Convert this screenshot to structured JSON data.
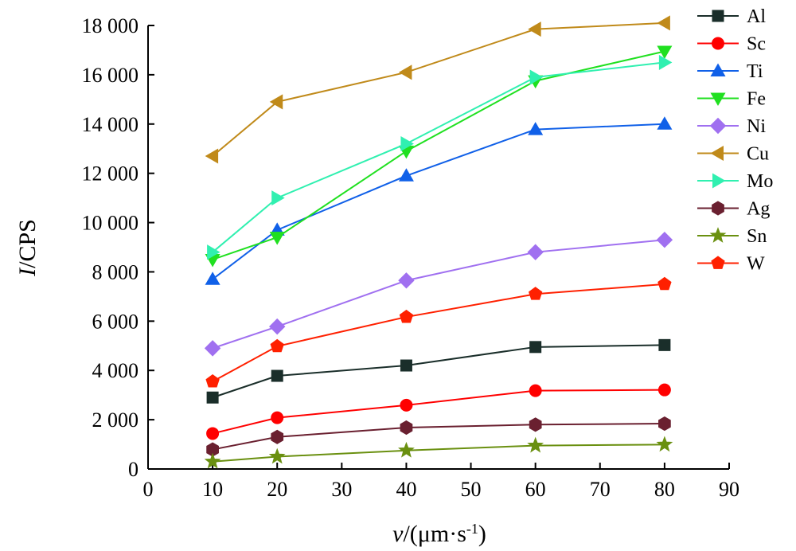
{
  "chart_data": {
    "type": "line",
    "xlabel": "v/(μm·s-1)",
    "ylabel": "I/CPS",
    "xlim": [
      0,
      90
    ],
    "ylim": [
      0,
      18000
    ],
    "x_ticks": [
      0,
      10,
      20,
      30,
      40,
      50,
      60,
      70,
      80,
      90
    ],
    "x_tick_labels": [
      "0",
      "10",
      "20",
      "30",
      "40",
      "50",
      "60",
      "70",
      "80",
      "90"
    ],
    "y_ticks": [
      0,
      2000,
      4000,
      6000,
      8000,
      10000,
      12000,
      14000,
      16000,
      18000
    ],
    "y_tick_labels": [
      "0",
      "2 000",
      "4 000",
      "6 000",
      "8 000",
      "10 000",
      "12 000",
      "14 000",
      "16 000",
      "18 000"
    ],
    "x": [
      10,
      20,
      40,
      60,
      80
    ],
    "grid": false,
    "legend_position": "right",
    "series": [
      {
        "name": "Al",
        "color": "#1a2e2a",
        "marker": "square",
        "values": [
          2900,
          3780,
          4200,
          4950,
          5030
        ]
      },
      {
        "name": "Sc",
        "color": "#ff0000",
        "marker": "circle",
        "values": [
          1440,
          2080,
          2590,
          3180,
          3210
        ]
      },
      {
        "name": "Ti",
        "color": "#1060e8",
        "marker": "triangle-up",
        "values": [
          7700,
          9700,
          11900,
          13780,
          14000
        ]
      },
      {
        "name": "Fe",
        "color": "#20e020",
        "marker": "triangle-down",
        "values": [
          8500,
          9400,
          12900,
          15750,
          16950
        ]
      },
      {
        "name": "Ni",
        "color": "#a070f0",
        "marker": "diamond",
        "values": [
          4900,
          5780,
          7650,
          8800,
          9300
        ]
      },
      {
        "name": "Cu",
        "color": "#c08a1a",
        "marker": "triangle-left",
        "values": [
          12700,
          14900,
          16100,
          17850,
          18100
        ]
      },
      {
        "name": "Mo",
        "color": "#30f0b0",
        "marker": "triangle-right",
        "values": [
          8800,
          11000,
          13200,
          15900,
          16500
        ]
      },
      {
        "name": "Ag",
        "color": "#6a2030",
        "marker": "hexagon",
        "values": [
          790,
          1300,
          1680,
          1800,
          1840
        ]
      },
      {
        "name": "Sn",
        "color": "#6a9010",
        "marker": "star",
        "values": [
          300,
          500,
          750,
          950,
          990
        ]
      },
      {
        "name": "W",
        "color": "#ff2000",
        "marker": "pentagon",
        "values": [
          3550,
          4980,
          6170,
          7100,
          7500
        ]
      }
    ]
  }
}
